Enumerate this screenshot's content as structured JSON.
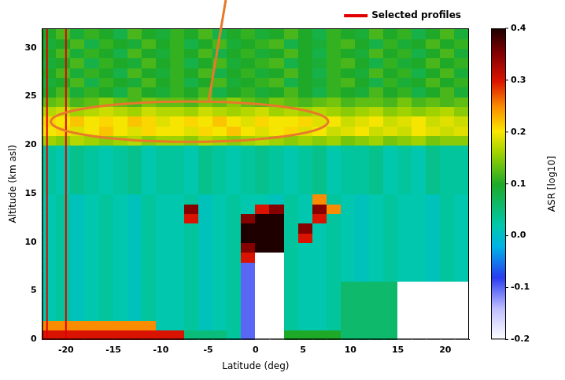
{
  "chart_data": {
    "type": "heatmap",
    "x_label": "Latitude (deg)",
    "y_label": "Altitude (km asl)",
    "xlim": [
      -22.5,
      22.5
    ],
    "xticks": [
      -20,
      -15,
      -10,
      -5,
      0,
      5,
      10,
      15,
      20
    ],
    "ylim": [
      0,
      32
    ],
    "yticks": [
      0,
      5,
      10,
      15,
      20,
      25,
      30
    ],
    "grid": false,
    "legend": "top",
    "series": [
      {
        "name": "Selected profiles",
        "color": "#e00000",
        "type": "line",
        "x": [
          -22,
          -20
        ]
      }
    ],
    "colorbar": {
      "label": "ASR [log10]",
      "range": [
        -0.2,
        0.4
      ],
      "ticks": [
        -0.2,
        -0.1,
        {
          "value": 0,
          "label": "0.0"
        },
        0.1,
        0.2,
        0.3,
        0.4
      ]
    },
    "xbins": [
      -22.5,
      -21,
      -19.5,
      -18,
      -16.5,
      -15,
      -13.5,
      -12,
      -10.5,
      -9,
      -7.5,
      -6,
      -4.5,
      -3,
      -1.5,
      0,
      1.5,
      3,
      4.5,
      6,
      7.5,
      9,
      10.5,
      12,
      13.5,
      15,
      16.5,
      18,
      19.5,
      21,
      22.5
    ],
    "ybins": [
      0,
      1,
      2,
      3,
      4,
      5,
      6,
      7,
      8,
      9,
      10,
      11,
      12,
      13,
      14,
      15,
      16,
      17,
      18,
      19,
      20,
      21,
      22,
      23,
      24,
      25,
      26,
      27,
      28,
      29,
      30,
      31,
      32
    ],
    "cells": [
      [
        0.3,
        0.3,
        0.3,
        0.3,
        0.3,
        0.3,
        0.3,
        0.3,
        0.3,
        0.3,
        0.05,
        0.05,
        0.05,
        0.03,
        -0.1,
        -0.2,
        -0.2,
        0.1,
        0.1,
        0.1,
        0.1,
        0.06,
        0.06,
        0.06,
        0.06,
        -0.2,
        -0.2,
        -0.2,
        -0.2,
        -0.2
      ],
      [
        0.25,
        0.25,
        0.25,
        0.25,
        0.25,
        0.25,
        0.25,
        0.25,
        0.02,
        0.02,
        0.03,
        0.01,
        0.02,
        0.03,
        -0.1,
        -0.2,
        -0.2,
        0.03,
        0.02,
        0.02,
        0.03,
        0.06,
        0.06,
        0.06,
        0.06,
        -0.2,
        -0.2,
        -0.2,
        -0.2,
        -0.2
      ],
      [
        0.02,
        0.03,
        0.01,
        0.02,
        0.03,
        0.02,
        0.01,
        0.03,
        0.02,
        0.02,
        0.03,
        0.01,
        0.02,
        0.03,
        -0.1,
        -0.2,
        -0.2,
        0.03,
        0.02,
        0.02,
        0.03,
        0.06,
        0.06,
        0.06,
        0.06,
        -0.2,
        -0.2,
        -0.2,
        -0.2,
        -0.2
      ],
      [
        0.02,
        0.03,
        0.01,
        0.02,
        0.03,
        0.02,
        0.01,
        0.03,
        0.02,
        0.02,
        0.03,
        0.01,
        0.02,
        0.03,
        -0.1,
        -0.2,
        -0.2,
        0.03,
        0.02,
        0.02,
        0.03,
        0.06,
        0.06,
        0.06,
        0.06,
        -0.2,
        -0.2,
        -0.2,
        -0.2,
        -0.2
      ],
      [
        0.02,
        0.03,
        0.01,
        0.02,
        0.03,
        0.02,
        0.01,
        0.03,
        0.02,
        0.02,
        0.03,
        0.01,
        0.02,
        0.03,
        -0.1,
        -0.2,
        -0.2,
        0.03,
        0.02,
        0.02,
        0.03,
        0.06,
        0.06,
        0.06,
        0.06,
        -0.2,
        -0.2,
        -0.2,
        -0.2,
        -0.2
      ],
      [
        0.02,
        0.03,
        0.01,
        0.02,
        0.03,
        0.02,
        0.01,
        0.03,
        0.02,
        0.02,
        0.03,
        0.01,
        0.02,
        0.03,
        -0.1,
        -0.2,
        -0.2,
        0.03,
        0.02,
        0.02,
        0.03,
        0.06,
        0.06,
        0.06,
        0.06,
        -0.2,
        -0.2,
        -0.2,
        -0.2,
        -0.2
      ],
      [
        0.02,
        0.03,
        0.01,
        0.02,
        0.03,
        0.02,
        0.01,
        0.03,
        0.02,
        0.02,
        0.03,
        0.01,
        0.02,
        0.03,
        -0.1,
        -0.2,
        -0.2,
        0.03,
        0.02,
        0.02,
        0.03,
        0.02,
        0.01,
        0.02,
        0.03,
        0.02,
        0.02,
        0.01,
        0.03,
        0.02
      ],
      [
        0.02,
        0.03,
        0.01,
        0.02,
        0.03,
        0.02,
        0.01,
        0.03,
        0.02,
        0.02,
        0.03,
        0.01,
        0.02,
        0.03,
        -0.1,
        -0.2,
        -0.2,
        0.03,
        0.02,
        0.02,
        0.03,
        0.02,
        0.01,
        0.02,
        0.03,
        0.02,
        0.02,
        0.01,
        0.03,
        0.02
      ],
      [
        0.02,
        0.03,
        0.01,
        0.02,
        0.03,
        0.02,
        0.01,
        0.03,
        0.02,
        0.02,
        0.03,
        0.01,
        0.02,
        0.03,
        0.3,
        -0.2,
        -0.2,
        0.03,
        0.02,
        0.02,
        0.03,
        0.02,
        0.01,
        0.02,
        0.03,
        0.02,
        0.02,
        0.01,
        0.03,
        0.02
      ],
      [
        0.02,
        0.03,
        0.01,
        0.02,
        0.03,
        0.02,
        0.01,
        0.03,
        0.02,
        0.02,
        0.03,
        0.01,
        0.02,
        0.03,
        0.35,
        0.4,
        0.4,
        0.03,
        0.02,
        0.02,
        0.03,
        0.02,
        0.01,
        0.02,
        0.03,
        0.02,
        0.02,
        0.01,
        0.03,
        0.02
      ],
      [
        0.02,
        0.03,
        0.01,
        0.02,
        0.03,
        0.02,
        0.01,
        0.03,
        0.02,
        0.02,
        0.03,
        0.01,
        0.02,
        0.03,
        0.4,
        0.4,
        0.4,
        0.03,
        0.3,
        0.02,
        0.03,
        0.02,
        0.01,
        0.02,
        0.03,
        0.02,
        0.02,
        0.01,
        0.03,
        0.02
      ],
      [
        0.02,
        0.03,
        0.01,
        0.02,
        0.03,
        0.02,
        0.01,
        0.03,
        0.02,
        0.02,
        0.03,
        0.01,
        0.02,
        0.03,
        0.4,
        0.4,
        0.4,
        0.03,
        0.35,
        0.02,
        0.03,
        0.02,
        0.01,
        0.02,
        0.03,
        0.02,
        0.02,
        0.01,
        0.03,
        0.02
      ],
      [
        0.02,
        0.03,
        0.01,
        0.02,
        0.03,
        0.02,
        0.01,
        0.03,
        0.02,
        0.02,
        0.3,
        0.01,
        0.02,
        0.03,
        0.35,
        0.4,
        0.4,
        0.03,
        0.02,
        0.3,
        0.03,
        0.02,
        0.01,
        0.02,
        0.03,
        0.02,
        0.02,
        0.01,
        0.03,
        0.02
      ],
      [
        0.02,
        0.03,
        0.01,
        0.02,
        0.03,
        0.02,
        0.01,
        0.03,
        0.02,
        0.02,
        0.35,
        0.01,
        0.02,
        0.03,
        0.02,
        0.3,
        0.35,
        0.03,
        0.02,
        0.35,
        0.25,
        0.02,
        0.01,
        0.02,
        0.03,
        0.02,
        0.02,
        0.01,
        0.03,
        0.02
      ],
      [
        0.02,
        0.03,
        0.01,
        0.02,
        0.03,
        0.02,
        0.01,
        0.03,
        0.02,
        0.02,
        0.03,
        0.01,
        0.02,
        0.03,
        0.02,
        0.02,
        0.01,
        0.03,
        0.02,
        0.25,
        0.03,
        0.02,
        0.01,
        0.02,
        0.03,
        0.02,
        0.02,
        0.01,
        0.03,
        0.02
      ],
      [
        0.03,
        0.02,
        0.04,
        0.03,
        0.02,
        0.03,
        0.04,
        0.02,
        0.03,
        0.03,
        0.02,
        0.04,
        0.03,
        0.02,
        0.03,
        0.04,
        0.03,
        0.02,
        0.03,
        0.04,
        0.02,
        0.03,
        0.03,
        0.04,
        0.02,
        0.03,
        0.02,
        0.04,
        0.03,
        0.03
      ],
      [
        0.03,
        0.02,
        0.04,
        0.03,
        0.02,
        0.03,
        0.04,
        0.02,
        0.03,
        0.03,
        0.02,
        0.04,
        0.03,
        0.02,
        0.03,
        0.04,
        0.03,
        0.02,
        0.03,
        0.04,
        0.02,
        0.03,
        0.03,
        0.04,
        0.02,
        0.03,
        0.02,
        0.04,
        0.03,
        0.03
      ],
      [
        0.03,
        0.02,
        0.04,
        0.03,
        0.02,
        0.03,
        0.04,
        0.02,
        0.03,
        0.03,
        0.02,
        0.04,
        0.03,
        0.02,
        0.03,
        0.04,
        0.03,
        0.02,
        0.03,
        0.04,
        0.02,
        0.03,
        0.03,
        0.04,
        0.02,
        0.03,
        0.02,
        0.04,
        0.03,
        0.03
      ],
      [
        0.03,
        0.02,
        0.04,
        0.03,
        0.02,
        0.03,
        0.04,
        0.02,
        0.03,
        0.03,
        0.02,
        0.04,
        0.03,
        0.02,
        0.03,
        0.04,
        0.03,
        0.02,
        0.03,
        0.04,
        0.02,
        0.03,
        0.03,
        0.04,
        0.02,
        0.03,
        0.02,
        0.04,
        0.03,
        0.03
      ],
      [
        0.03,
        0.02,
        0.04,
        0.03,
        0.02,
        0.03,
        0.04,
        0.02,
        0.03,
        0.03,
        0.02,
        0.04,
        0.03,
        0.02,
        0.03,
        0.04,
        0.03,
        0.02,
        0.03,
        0.04,
        0.02,
        0.03,
        0.03,
        0.04,
        0.02,
        0.03,
        0.02,
        0.04,
        0.03,
        0.03
      ],
      [
        0.16,
        0.15,
        0.17,
        0.16,
        0.15,
        0.16,
        0.17,
        0.15,
        0.16,
        0.16,
        0.15,
        0.17,
        0.16,
        0.15,
        0.16,
        0.17,
        0.16,
        0.15,
        0.16,
        0.15,
        0.16,
        0.14,
        0.15,
        0.16,
        0.14,
        0.15,
        0.16,
        0.14,
        0.15,
        0.15
      ],
      [
        0.2,
        0.21,
        0.19,
        0.2,
        0.22,
        0.2,
        0.19,
        0.21,
        0.2,
        0.2,
        0.19,
        0.21,
        0.2,
        0.22,
        0.2,
        0.19,
        0.2,
        0.21,
        0.19,
        0.2,
        0.18,
        0.19,
        0.2,
        0.18,
        0.19,
        0.18,
        0.2,
        0.19,
        0.18,
        0.19
      ],
      [
        0.21,
        0.2,
        0.22,
        0.2,
        0.21,
        0.2,
        0.22,
        0.21,
        0.19,
        0.2,
        0.21,
        0.2,
        0.22,
        0.2,
        0.19,
        0.21,
        0.2,
        0.2,
        0.21,
        0.19,
        0.2,
        0.18,
        0.19,
        0.2,
        0.18,
        0.19,
        0.2,
        0.18,
        0.19,
        0.18
      ],
      [
        0.17,
        0.18,
        0.16,
        0.17,
        0.18,
        0.17,
        0.16,
        0.18,
        0.17,
        0.17,
        0.16,
        0.18,
        0.17,
        0.16,
        0.17,
        0.18,
        0.16,
        0.17,
        0.16,
        0.17,
        0.16,
        0.15,
        0.16,
        0.17,
        0.15,
        0.16,
        0.15,
        0.16,
        0.17,
        0.15
      ],
      [
        0.13,
        0.14,
        0.12,
        0.13,
        0.15,
        0.13,
        0.12,
        0.14,
        0.13,
        0.13,
        0.12,
        0.14,
        0.13,
        0.15,
        0.13,
        0.12,
        0.14,
        0.13,
        0.12,
        0.13,
        0.14,
        0.12,
        0.13,
        0.13,
        0.12,
        0.14,
        0.12,
        0.13,
        0.12,
        0.13
      ],
      [
        0.1,
        0.12,
        0.09,
        0.11,
        0.1,
        0.08,
        0.12,
        0.1,
        0.09,
        0.11,
        0.1,
        0.12,
        0.08,
        0.1,
        0.11,
        0.09,
        0.1,
        0.12,
        0.1,
        0.08,
        0.11,
        0.1,
        0.09,
        0.12,
        0.1,
        0.11,
        0.08,
        0.1,
        0.12,
        0.09
      ],
      [
        0.09,
        0.1,
        0.12,
        0.08,
        0.11,
        0.1,
        0.09,
        0.12,
        0.1,
        0.11,
        0.08,
        0.1,
        0.12,
        0.09,
        0.1,
        0.11,
        0.12,
        0.08,
        0.1,
        0.09,
        0.11,
        0.12,
        0.1,
        0.08,
        0.11,
        0.09,
        0.1,
        0.12,
        0.1,
        0.11
      ],
      [
        0.1,
        0.12,
        0.09,
        0.11,
        0.1,
        0.08,
        0.12,
        0.1,
        0.09,
        0.11,
        0.1,
        0.12,
        0.08,
        0.1,
        0.11,
        0.09,
        0.1,
        0.12,
        0.1,
        0.08,
        0.11,
        0.1,
        0.09,
        0.12,
        0.1,
        0.11,
        0.08,
        0.1,
        0.12,
        0.09
      ],
      [
        0.09,
        0.1,
        0.12,
        0.08,
        0.11,
        0.1,
        0.09,
        0.12,
        0.1,
        0.11,
        0.08,
        0.1,
        0.12,
        0.09,
        0.1,
        0.11,
        0.12,
        0.08,
        0.1,
        0.09,
        0.11,
        0.12,
        0.1,
        0.08,
        0.11,
        0.09,
        0.1,
        0.12,
        0.1,
        0.11
      ],
      [
        0.1,
        0.12,
        0.09,
        0.11,
        0.1,
        0.08,
        0.12,
        0.1,
        0.09,
        0.11,
        0.1,
        0.12,
        0.08,
        0.1,
        0.11,
        0.09,
        0.1,
        0.12,
        0.1,
        0.08,
        0.11,
        0.1,
        0.09,
        0.12,
        0.1,
        0.11,
        0.08,
        0.1,
        0.12,
        0.09
      ],
      [
        0.09,
        0.1,
        0.12,
        0.08,
        0.11,
        0.1,
        0.09,
        0.12,
        0.1,
        0.11,
        0.08,
        0.1,
        0.12,
        0.09,
        0.1,
        0.11,
        0.12,
        0.08,
        0.1,
        0.09,
        0.11,
        0.12,
        0.1,
        0.08,
        0.11,
        0.09,
        0.1,
        0.12,
        0.1,
        0.11
      ],
      [
        0.1,
        0.12,
        0.09,
        0.11,
        0.1,
        0.08,
        0.12,
        0.1,
        0.09,
        0.11,
        0.1,
        0.12,
        0.08,
        0.1,
        0.11,
        0.09,
        0.1,
        0.12,
        0.1,
        0.08,
        0.11,
        0.1,
        0.09,
        0.12,
        0.1,
        0.11,
        0.08,
        0.1,
        0.12,
        0.09
      ]
    ]
  }
}
